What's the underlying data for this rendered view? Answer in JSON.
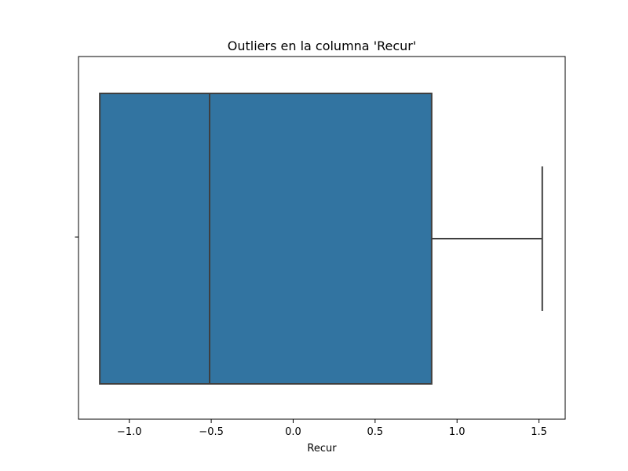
{
  "chart_data": {
    "type": "boxplot",
    "title": "Outliers en la columna 'Recur'",
    "xlabel": "Recur",
    "ylabel": "",
    "xlim": [
      -1.31,
      1.66
    ],
    "x_ticks": [
      -1.0,
      -0.5,
      0.0,
      0.5,
      1.0,
      1.5
    ],
    "x_tick_labels": [
      "−1.0",
      "−0.5",
      "0.0",
      "0.5",
      "1.0",
      "1.5"
    ],
    "y_tick_labels": [
      ""
    ],
    "box": {
      "whisker_low": -1.18,
      "q1": -1.18,
      "median": -0.51,
      "q3": 0.845,
      "whisker_high": 1.52
    },
    "outliers": [],
    "grid": false,
    "color": "#3274a1",
    "line_color": "#3f3f3f"
  }
}
